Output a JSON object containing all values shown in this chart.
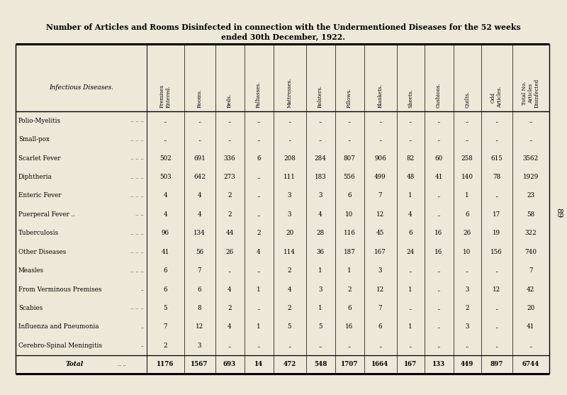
{
  "title_line1": "Number of Articles and Rooms Disinfected in connection with the Undermentioned Diseases for the 52 weeks",
  "title_line2": "ended 30th December, 1922.",
  "bg_color": "#ede8d8",
  "col_headers": [
    "Premises\nEntered.",
    "Rooms.",
    "Beds.",
    "Palliasses.",
    "Mattresses.",
    "Bolsters.",
    "Pillows.",
    "Blankets.",
    "Sheets.",
    "Cushions.",
    "Quilts.",
    "Odd\nArticles.",
    "Total No.\nArticles\nDisinfected"
  ],
  "row_labels": [
    "Polio-Myelitis",
    "Small-pox",
    "Scarlet Fever",
    "Diphtheria",
    "Enteric Fever",
    "Puerperal Fever ..",
    "Tuberculosis",
    "Other Diseases",
    "Measles",
    "From Verminous Premises",
    "Scabies",
    "Influenza and Pneumonia",
    "Cerebro-Spinal Meningitis",
    "Total"
  ],
  "row_dots": [
    ".. .. ..",
    ".. .. ..",
    ".. .. ..",
    ".. .. ..",
    ".. .. ..",
    ".. ..",
    ".. .. ..",
    ".. .. ..",
    ".. .. ..",
    "..",
    ".. .. ..",
    "..",
    "..",
    ".. .."
  ],
  "data": [
    [
      "..",
      "..",
      "..",
      "..",
      "..",
      "..",
      "..",
      "..",
      "..",
      "..",
      "..",
      "..",
      ".."
    ],
    [
      "..",
      "..",
      "..",
      "..",
      "..",
      "..",
      "..",
      "..",
      "..",
      "..",
      "..",
      "..",
      ".."
    ],
    [
      "502",
      "691",
      "336",
      "6",
      "208",
      "284",
      "807",
      "906",
      "82",
      "60",
      "258",
      "615",
      "3562"
    ],
    [
      "503",
      "642",
      "273",
      "..",
      "111",
      "183",
      "556",
      "499",
      "48",
      "41",
      "140",
      "78",
      "1929"
    ],
    [
      "4",
      "4",
      "2",
      "..",
      "3",
      "3",
      "6",
      "7",
      "1",
      "..",
      "1",
      "..",
      "23"
    ],
    [
      "4",
      "4",
      "2",
      "..",
      "3",
      "4",
      "10",
      "12",
      "4",
      "..",
      "6",
      "17",
      "58"
    ],
    [
      "96",
      "134",
      "44",
      "2",
      "20",
      "28",
      "116",
      "45",
      "6",
      "16",
      "26",
      "19",
      "322"
    ],
    [
      "41",
      "56",
      "26",
      "4",
      "114",
      "36",
      "187",
      "167",
      "24",
      "16",
      "10",
      "156",
      "740"
    ],
    [
      "6",
      "7",
      "..",
      "..",
      "2",
      "1",
      "1",
      "3",
      "..",
      "..",
      "..",
      "..",
      "7"
    ],
    [
      "6",
      "6",
      "4",
      "1",
      "4",
      "3",
      "2",
      "12",
      "1",
      "..",
      "3",
      "12",
      "42"
    ],
    [
      "5",
      "8",
      "2",
      "..",
      "2",
      "1",
      "6",
      "7",
      "..",
      "..",
      "2",
      "..",
      "20"
    ],
    [
      "7",
      "12",
      "4",
      "1",
      "5",
      "5",
      "16",
      "6",
      "1",
      "..",
      "3",
      "..",
      "41"
    ],
    [
      "2",
      "3",
      "..",
      "..",
      "..",
      "..",
      "..",
      "..",
      "..",
      "..",
      "..",
      "..",
      ".."
    ],
    [
      "1176",
      "1567",
      "693",
      "14",
      "472",
      "548",
      "1707",
      "1664",
      "167",
      "133",
      "449",
      "897",
      "6744"
    ]
  ],
  "page_number": "89",
  "left_label": "Infectious Diseases.",
  "total_label": "Total"
}
